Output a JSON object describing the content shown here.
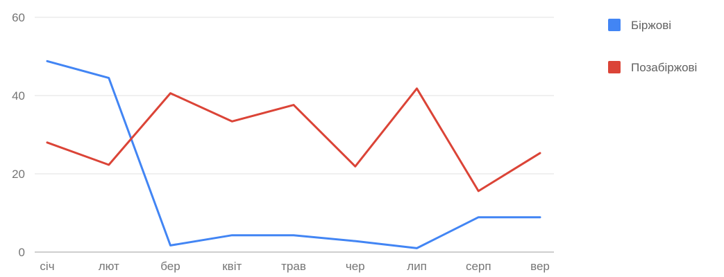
{
  "chart_data": {
    "type": "line",
    "categories": [
      "січ",
      "лют",
      "бер",
      "квіт",
      "трав",
      "чер",
      "лип",
      "серп",
      "вер"
    ],
    "series": [
      {
        "name": "Біржові",
        "color": "#4285f4",
        "values": [
          48.8,
          44.5,
          1.7,
          4.3,
          4.3,
          2.8,
          1.0,
          8.9,
          8.9
        ]
      },
      {
        "name": "Позабіржові",
        "color": "#db4437",
        "values": [
          28.0,
          22.3,
          40.6,
          33.4,
          37.6,
          21.9,
          41.8,
          15.6,
          25.3
        ]
      }
    ],
    "yticks": [
      0,
      20,
      40,
      60
    ],
    "ylim": [
      0,
      60
    ],
    "grid": true,
    "legend_position": "right"
  }
}
